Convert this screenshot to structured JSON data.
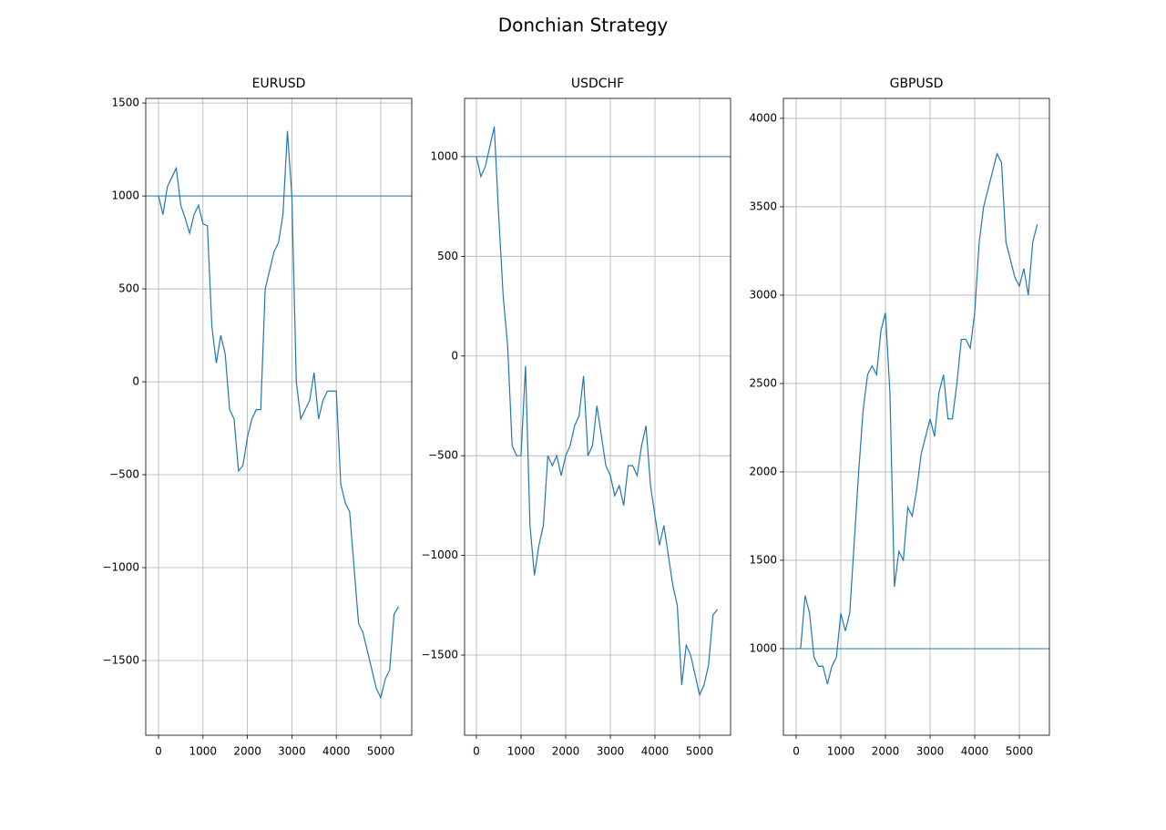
{
  "title": "Donchian Strategy",
  "chart_data": [
    {
      "type": "line",
      "title": "EURUSD",
      "color": "#1f77b4",
      "grid": true,
      "hline": 1000,
      "x": [
        0,
        100,
        200,
        300,
        400,
        500,
        600,
        700,
        800,
        900,
        1000,
        1100,
        1200,
        1300,
        1400,
        1500,
        1600,
        1700,
        1800,
        1900,
        2000,
        2100,
        2200,
        2300,
        2400,
        2500,
        2600,
        2700,
        2800,
        2900,
        3000,
        3100,
        3200,
        3300,
        3400,
        3500,
        3600,
        3700,
        3800,
        3900,
        4000,
        4100,
        4200,
        4300,
        4400,
        4500,
        4600,
        4700,
        4800,
        4900,
        5000,
        5100,
        5200,
        5300,
        5400
      ],
      "values": [
        1000,
        900,
        1050,
        1100,
        1150,
        950,
        880,
        800,
        900,
        950,
        850,
        840,
        300,
        100,
        250,
        150,
        -150,
        -200,
        -480,
        -450,
        -300,
        -200,
        -150,
        -150,
        500,
        600,
        700,
        750,
        900,
        1350,
        1000,
        0,
        -200,
        -150,
        -100,
        50,
        -200,
        -100,
        -50,
        -50,
        -50,
        -550,
        -650,
        -700,
        -1000,
        -1300,
        -1350,
        -1450,
        -1550,
        -1650,
        -1700,
        -1600,
        -1550,
        -1250,
        -1210
      ],
      "xlim": [
        -287,
        5697
      ],
      "ylim": [
        -1902,
        1525
      ],
      "xticks": [
        0,
        1000,
        2000,
        3000,
        4000,
        5000
      ],
      "yticks": [
        {
          "value": -1500,
          "label": "−1500"
        },
        {
          "value": -1000,
          "label": "−1000"
        },
        {
          "value": -500,
          "label": "−500"
        },
        0,
        500,
        1000,
        1500
      ]
    },
    {
      "type": "line",
      "title": "USDCHF",
      "color": "#1f77b4",
      "grid": true,
      "hline": 1000,
      "x": [
        0,
        100,
        200,
        300,
        400,
        500,
        600,
        700,
        800,
        900,
        1000,
        1100,
        1200,
        1300,
        1400,
        1500,
        1600,
        1700,
        1800,
        1900,
        2000,
        2100,
        2200,
        2300,
        2400,
        2500,
        2600,
        2700,
        2800,
        2900,
        3000,
        3100,
        3200,
        3300,
        3400,
        3500,
        3600,
        3700,
        3800,
        3900,
        4000,
        4100,
        4200,
        4300,
        4400,
        4500,
        4600,
        4700,
        4800,
        4900,
        5000,
        5100,
        5200,
        5300,
        5400
      ],
      "values": [
        1000,
        900,
        950,
        1050,
        1150,
        700,
        300,
        50,
        -450,
        -500,
        -500,
        -50,
        -850,
        -1100,
        -950,
        -850,
        -500,
        -550,
        -500,
        -600,
        -500,
        -450,
        -350,
        -300,
        -100,
        -500,
        -450,
        -250,
        -400,
        -550,
        -600,
        -700,
        -650,
        -750,
        -550,
        -550,
        -600,
        -450,
        -350,
        -650,
        -800,
        -950,
        -850,
        -1000,
        -1150,
        -1250,
        -1650,
        -1450,
        -1500,
        -1600,
        -1700,
        -1650,
        -1550,
        -1300,
        -1270
      ],
      "xlim": [
        -265,
        5694
      ],
      "ylim": [
        -1902,
        1292
      ],
      "xticks": [
        0,
        1000,
        2000,
        3000,
        4000,
        5000
      ],
      "yticks": [
        {
          "value": -1500,
          "label": "−1500"
        },
        {
          "value": -1000,
          "label": "−1000"
        },
        {
          "value": -500,
          "label": "−500"
        },
        0,
        500,
        1000
      ]
    },
    {
      "type": "line",
      "title": "GBPUSD",
      "color": "#1f77b4",
      "grid": true,
      "hline": 1000,
      "x": [
        0,
        100,
        200,
        300,
        400,
        500,
        600,
        700,
        800,
        900,
        1000,
        1100,
        1200,
        1300,
        1400,
        1500,
        1600,
        1700,
        1800,
        1900,
        2000,
        2100,
        2200,
        2300,
        2400,
        2500,
        2600,
        2700,
        2800,
        2900,
        3000,
        3100,
        3200,
        3300,
        3400,
        3500,
        3600,
        3700,
        3800,
        3900,
        4000,
        4100,
        4200,
        4300,
        4400,
        4500,
        4600,
        4700,
        4800,
        4900,
        5000,
        5100,
        5200,
        5300,
        5400
      ],
      "values": [
        1000,
        1000,
        1300,
        1200,
        950,
        900,
        900,
        800,
        900,
        950,
        1200,
        1100,
        1200,
        1600,
        2000,
        2350,
        2550,
        2600,
        2550,
        2800,
        2900,
        2450,
        1350,
        1550,
        1500,
        1800,
        1750,
        1900,
        2100,
        2200,
        2300,
        2200,
        2450,
        2550,
        2300,
        2300,
        2500,
        2750,
        2750,
        2700,
        2900,
        3300,
        3500,
        3600,
        3700,
        3800,
        3750,
        3300,
        3200,
        3100,
        3050,
        3150,
        3000,
        3300,
        3400
      ],
      "xlim": [
        -286,
        5673
      ],
      "ylim": [
        510,
        4113
      ],
      "xticks": [
        0,
        1000,
        2000,
        3000,
        4000,
        5000
      ],
      "yticks": [
        1000,
        1500,
        2000,
        2500,
        3000,
        3500,
        4000
      ]
    }
  ]
}
